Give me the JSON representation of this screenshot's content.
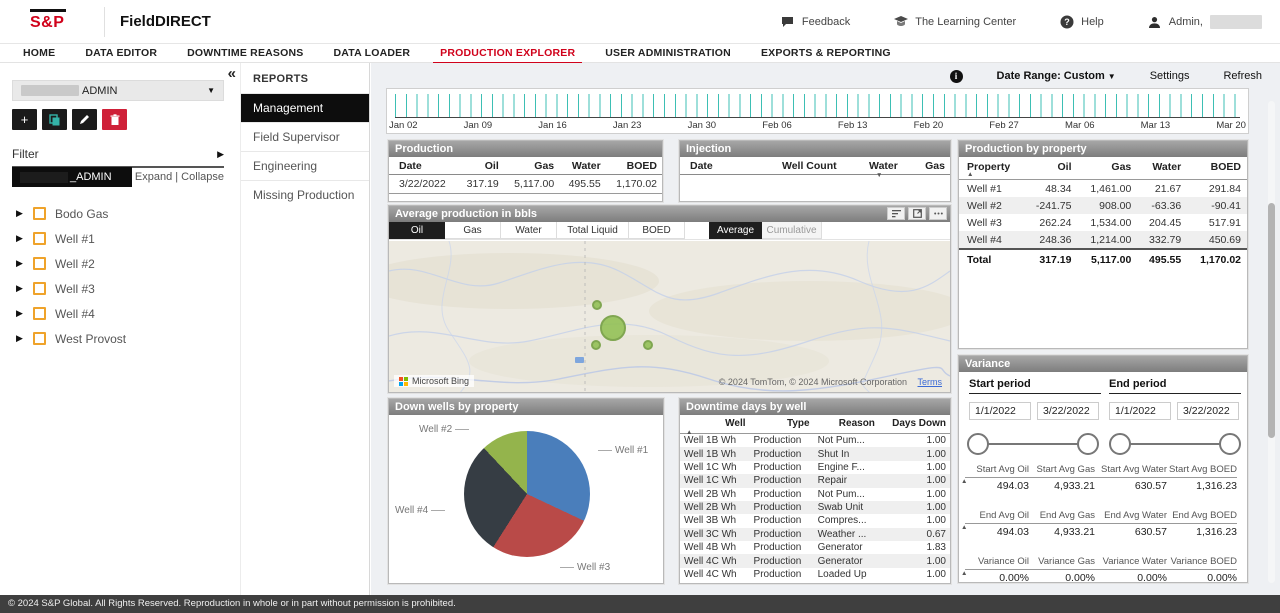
{
  "header": {
    "logo": "S&P",
    "app_name": "FieldDIRECT",
    "feedback": "Feedback",
    "learning_center": "The Learning Center",
    "help": "Help",
    "admin": "Admin,"
  },
  "nav": {
    "items": [
      "HOME",
      "DATA EDITOR",
      "DOWNTIME REASONS",
      "DATA LOADER",
      "PRODUCTION EXPLORER",
      "USER ADMINISTRATION",
      "EXPORTS & REPORTING"
    ],
    "active": "PRODUCTION EXPLORER"
  },
  "sidebar": {
    "collapse_glyph": "«",
    "dropdown_label": "ADMIN",
    "filter_label": "Filter",
    "badge_label": "_ADMIN",
    "expand_collapse": "Expand | Collapse",
    "tree": [
      "Bodo Gas",
      "Well #1",
      "Well #2",
      "Well #3",
      "Well #4",
      "West Provost"
    ]
  },
  "reports": {
    "title": "REPORTS",
    "items": [
      "Management",
      "Field Supervisor",
      "Engineering",
      "Missing Production"
    ],
    "active": "Management"
  },
  "controls": {
    "info_glyph": "i",
    "date_range": "Date Range: Custom",
    "settings": "Settings",
    "refresh": "Refresh"
  },
  "timeline": {
    "labels": [
      "Jan 02",
      "Jan 09",
      "Jan 16",
      "Jan 23",
      "Jan 30",
      "Feb 06",
      "Feb 13",
      "Feb 20",
      "Feb 27",
      "Mar 06",
      "Mar 13",
      "Mar 20"
    ]
  },
  "production": {
    "title": "Production",
    "columns": [
      "Date",
      "Oil",
      "Gas",
      "Water",
      "BOED"
    ],
    "row": [
      "3/22/2022",
      "317.19",
      "5,117.00",
      "495.55",
      "1,170.02"
    ]
  },
  "injection": {
    "title": "Injection",
    "columns": [
      "Date",
      "Well Count",
      "Water",
      "Gas"
    ]
  },
  "production_by_property": {
    "title": "Production by property",
    "columns": [
      "Property",
      "Oil",
      "Gas",
      "Water",
      "BOED"
    ],
    "rows": [
      [
        "Well #1",
        "48.34",
        "1,461.00",
        "21.67",
        "291.84"
      ],
      [
        "Well #2",
        "-241.75",
        "908.00",
        "-63.36",
        "-90.41"
      ],
      [
        "Well #3",
        "262.24",
        "1,534.00",
        "204.45",
        "517.91"
      ],
      [
        "Well #4",
        "248.36",
        "1,214.00",
        "332.79",
        "450.69"
      ]
    ],
    "total": [
      "Total",
      "317.19",
      "5,117.00",
      "495.55",
      "1,170.02"
    ]
  },
  "avg_production": {
    "title": "Average production in bbls",
    "tabs": [
      "Oil",
      "Gas",
      "Water",
      "Total Liquid",
      "BOED"
    ],
    "active_tab": "Oil",
    "mode_tabs": [
      "Average",
      "Cumulative"
    ],
    "active_mode": "Average",
    "map": {
      "provider": "Microsoft Bing",
      "attribution": "© 2024 TomTom, © 2024 Microsoft Corporation",
      "terms": "Terms"
    }
  },
  "down_wells": {
    "title": "Down wells by property"
  },
  "downtime": {
    "title": "Downtime days by well",
    "columns": [
      "Well",
      "Type",
      "Reason",
      "Days Down"
    ],
    "rows": [
      [
        "Well 1B Wh",
        "Production",
        "Not Pum...",
        "1.00"
      ],
      [
        "Well 1B Wh",
        "Production",
        "Shut In",
        "1.00"
      ],
      [
        "Well 1C Wh",
        "Production",
        "Engine F...",
        "1.00"
      ],
      [
        "Well 1C Wh",
        "Production",
        "Repair",
        "1.00"
      ],
      [
        "Well 2B Wh",
        "Production",
        "Not Pum...",
        "1.00"
      ],
      [
        "Well 2B Wh",
        "Production",
        "Swab Unit",
        "1.00"
      ],
      [
        "Well 3B Wh",
        "Production",
        "Compres...",
        "1.00"
      ],
      [
        "Well 3C Wh",
        "Production",
        "Weather ...",
        "0.67"
      ],
      [
        "Well 4B Wh",
        "Production",
        "Generator",
        "1.83"
      ],
      [
        "Well 4C Wh",
        "Production",
        "Generator",
        "1.00"
      ],
      [
        "Well 4C Wh",
        "Production",
        "Loaded Up",
        "1.00"
      ]
    ]
  },
  "variance": {
    "title": "Variance",
    "start_period_label": "Start period",
    "end_period_label": "End period",
    "start_dates": [
      "1/1/2022",
      "3/22/2022"
    ],
    "end_dates": [
      "1/1/2022",
      "3/22/2022"
    ],
    "sections": [
      {
        "labels": [
          "Start Avg Oil",
          "Start Avg Gas",
          "Start Avg Water",
          "Start Avg BOED"
        ],
        "values": [
          "494.03",
          "4,933.21",
          "630.57",
          "1,316.23"
        ]
      },
      {
        "labels": [
          "End Avg Oil",
          "End Avg Gas",
          "End Avg Water",
          "End Avg BOED"
        ],
        "values": [
          "494.03",
          "4,933.21",
          "630.57",
          "1,316.23"
        ]
      },
      {
        "labels": [
          "Variance Oil",
          "Variance Gas",
          "Variance Water",
          "Variance BOED"
        ],
        "values": [
          "0.00%",
          "0.00%",
          "0.00%",
          "0.00%"
        ]
      }
    ]
  },
  "footer": {
    "text": "© 2024   S&P Global. All Rights Reserved. Reproduction in whole or in part without permission is prohibited."
  },
  "chart_data": [
    {
      "type": "pie",
      "title": "Down wells by property",
      "labels": [
        "Well #1",
        "Well #3",
        "Well #4",
        "Well #2"
      ],
      "values": [
        32,
        27,
        29,
        12
      ],
      "colors": [
        "#4a7ebb",
        "#b94a48",
        "#363d44",
        "#94b44c"
      ],
      "legend_position": "callout-labels"
    },
    {
      "type": "timeline-ticks",
      "x_tick_labels": [
        "Jan 02",
        "Jan 09",
        "Jan 16",
        "Jan 23",
        "Jan 30",
        "Feb 06",
        "Feb 13",
        "Feb 20",
        "Feb 27",
        "Mar 06",
        "Mar 13",
        "Mar 20"
      ],
      "tick_interval": "daily",
      "tick_color": "#3dbfb4"
    }
  ]
}
